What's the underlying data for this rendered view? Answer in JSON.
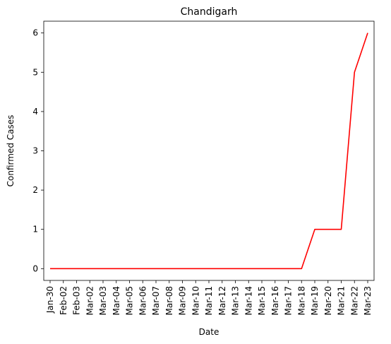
{
  "chart_data": {
    "type": "line",
    "title": "Chandigarh",
    "xlabel": "Date",
    "ylabel": "Confirmed Cases",
    "categories": [
      "Jan-30",
      "Feb-02",
      "Feb-03",
      "Mar-02",
      "Mar-03",
      "Mar-04",
      "Mar-05",
      "Mar-06",
      "Mar-07",
      "Mar-08",
      "Mar-09",
      "Mar-10",
      "Mar-11",
      "Mar-12",
      "Mar-13",
      "Mar-14",
      "Mar-15",
      "Mar-16",
      "Mar-17",
      "Mar-18",
      "Mar-19",
      "Mar-20",
      "Mar-21",
      "Mar-22",
      "Mar-23"
    ],
    "series": [
      {
        "values": [
          0,
          0,
          0,
          0,
          0,
          0,
          0,
          0,
          0,
          0,
          0,
          0,
          0,
          0,
          0,
          0,
          0,
          0,
          0,
          0,
          1,
          1,
          1,
          5,
          6
        ],
        "color": "#ff0000"
      }
    ],
    "ylim": [
      -0.3,
      6.3
    ],
    "yticks": [
      0,
      1,
      2,
      3,
      4,
      5,
      6
    ],
    "grid": false,
    "legend": "none"
  }
}
